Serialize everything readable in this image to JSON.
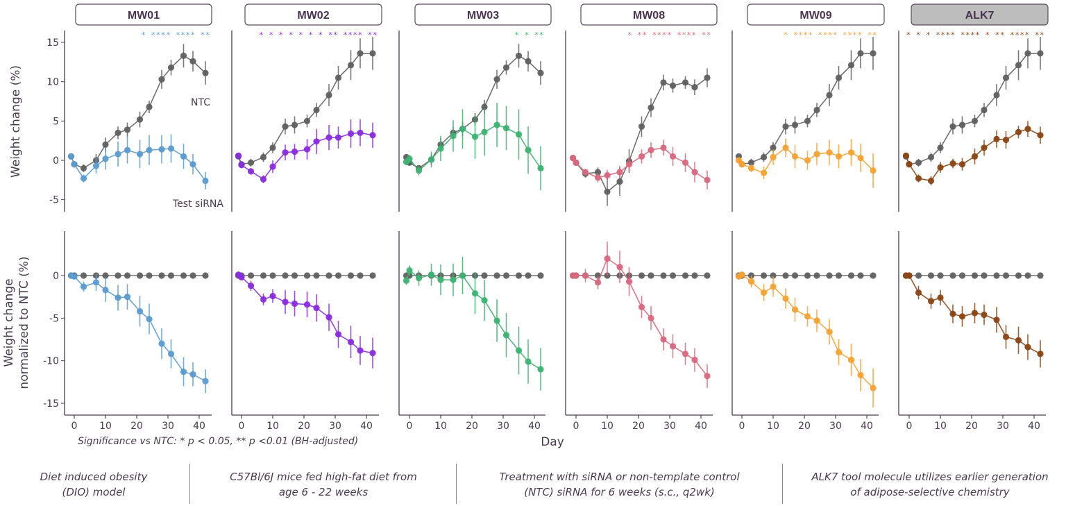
{
  "chart_data": {
    "type": "line",
    "days": [
      -1,
      0,
      3,
      7,
      10,
      14,
      17,
      21,
      24,
      28,
      31,
      35,
      38,
      42
    ],
    "xlabel": "Day",
    "xticks": [
      0,
      10,
      20,
      30,
      40
    ],
    "top": {
      "ylabel": "Weight change (%)",
      "ylim": [
        -6.5,
        16
      ],
      "yticks": [
        -5,
        0,
        5,
        10,
        15
      ]
    },
    "bottom": {
      "ylabel_line1": "Weight change",
      "ylabel_line2": "normalized to NTC (%)",
      "ylim": [
        -16.5,
        5
      ],
      "yticks": [
        -15,
        -10,
        -5,
        0
      ]
    },
    "ntc_color": "#606060",
    "annotations": {
      "ntc": "NTC",
      "test": "Test siRNA"
    },
    "panels": [
      {
        "name": "MW01",
        "color": "#5b9bd0",
        "highlight": false,
        "sig": [
          "*",
          "",
          "****",
          "",
          "****",
          "",
          "**"
        ],
        "sig_days": [
          24,
          28,
          31,
          35,
          38,
          42
        ],
        "sig_text": "*  ****  ****  **",
        "ntc": [
          0.5,
          -0.5,
          -1.0,
          0.0,
          2.0,
          3.5,
          3.9,
          5.2,
          6.8,
          10.3,
          11.8,
          13.3,
          12.6,
          11.1
        ],
        "ntc_err": [
          0.3,
          0.4,
          0.5,
          0.8,
          0.9,
          0.8,
          0.9,
          1.0,
          0.8,
          1.2,
          1.0,
          1.5,
          1.3,
          1.5
        ],
        "test": [
          0.5,
          -0.5,
          -2.3,
          -0.7,
          0.2,
          0.8,
          1.3,
          0.8,
          1.3,
          1.4,
          1.5,
          0.5,
          -0.5,
          -2.6
        ],
        "test_err": [
          0.3,
          0.4,
          0.5,
          1.0,
          1.4,
          1.6,
          1.7,
          1.8,
          1.9,
          1.8,
          1.8,
          1.6,
          1.3,
          1.1
        ],
        "norm": [
          0.0,
          -0.1,
          -1.3,
          -0.8,
          -1.7,
          -2.6,
          -2.5,
          -4.2,
          -5.1,
          -8.0,
          -9.2,
          -11.3,
          -11.6,
          -12.4
        ],
        "norm_err": [
          0.2,
          0.3,
          0.6,
          1.0,
          1.4,
          1.5,
          1.5,
          1.8,
          1.8,
          1.8,
          1.7,
          1.7,
          1.4,
          1.4
        ]
      },
      {
        "name": "MW02",
        "color": "#8a2be2",
        "highlight": false,
        "sig_text": "* *  * *  * *  * ** **** **",
        "ntc": [
          0.5,
          -0.5,
          -0.3,
          0.4,
          1.6,
          4.3,
          4.5,
          5.0,
          6.4,
          8.3,
          10.5,
          12.1,
          13.6,
          13.6
        ],
        "ntc_err": [
          0.3,
          0.4,
          0.5,
          0.6,
          0.7,
          1.0,
          1.1,
          0.8,
          0.9,
          1.4,
          1.5,
          1.9,
          1.9,
          2.1
        ],
        "test": [
          0.6,
          -0.6,
          -1.4,
          -2.4,
          -0.8,
          1.0,
          1.1,
          1.4,
          2.4,
          2.9,
          2.9,
          3.4,
          3.5,
          3.2
        ],
        "test_err": [
          0.3,
          0.4,
          0.4,
          0.5,
          0.8,
          1.0,
          1.0,
          1.3,
          1.6,
          1.6,
          1.4,
          1.8,
          1.7,
          1.6
        ],
        "norm": [
          0.1,
          -0.2,
          -1.2,
          -2.8,
          -2.4,
          -3.1,
          -3.3,
          -3.4,
          -3.8,
          -4.9,
          -6.9,
          -7.8,
          -8.8,
          -9.1
        ],
        "norm_err": [
          0.2,
          0.3,
          0.6,
          0.7,
          0.8,
          1.4,
          1.5,
          1.5,
          1.6,
          1.6,
          1.6,
          1.9,
          1.7,
          1.8
        ]
      },
      {
        "name": "MW03",
        "color": "#3cb371",
        "highlight": false,
        "sig_text": "*  *  **",
        "ntc": [
          0.4,
          -0.3,
          -1.0,
          0.1,
          2.0,
          3.5,
          4.0,
          5.2,
          6.8,
          10.3,
          11.8,
          13.3,
          12.6,
          11.1
        ],
        "ntc_err": [
          0.3,
          0.3,
          0.4,
          0.7,
          0.8,
          0.8,
          0.9,
          0.8,
          0.9,
          1.2,
          0.9,
          1.5,
          1.3,
          1.5
        ],
        "test": [
          -0.2,
          0.2,
          -1.3,
          0.1,
          1.5,
          3.1,
          4.0,
          3.0,
          3.6,
          4.5,
          4.1,
          3.3,
          1.3,
          -1.0
        ],
        "test_err": [
          0.4,
          0.5,
          0.6,
          1.0,
          1.6,
          2.0,
          2.5,
          2.8,
          3.0,
          2.8,
          2.8,
          3.2,
          3.0,
          2.8
        ],
        "norm": [
          -0.6,
          0.6,
          -0.3,
          0.1,
          -0.5,
          -0.5,
          0.0,
          -2.1,
          -2.9,
          -5.3,
          -7.0,
          -8.8,
          -10.1,
          -11.0
        ],
        "norm_err": [
          0.5,
          0.6,
          0.9,
          1.3,
          1.8,
          1.9,
          2.2,
          2.4,
          2.4,
          2.5,
          2.6,
          2.8,
          2.6,
          2.5
        ]
      },
      {
        "name": "MW08",
        "color": "#d9687e",
        "highlight": false,
        "sig_text": "* **  ****  ****  **",
        "ntc": [
          0.3,
          -0.3,
          -1.7,
          -1.5,
          -4.0,
          -2.7,
          -0.1,
          4.3,
          6.7,
          9.9,
          9.5,
          9.9,
          9.3,
          10.5
        ],
        "ntc_err": [
          0.3,
          0.3,
          0.5,
          0.6,
          1.8,
          1.8,
          1.5,
          1.3,
          1.2,
          1.0,
          0.9,
          0.8,
          1.0,
          1.2
        ],
        "test": [
          0.3,
          -0.3,
          -1.5,
          -2.2,
          -1.9,
          -1.5,
          -0.5,
          0.5,
          1.3,
          1.6,
          0.5,
          -0.3,
          -1.5,
          -2.5
        ],
        "test_err": [
          0.3,
          0.3,
          0.4,
          0.6,
          0.7,
          0.8,
          0.9,
          0.9,
          1.0,
          1.0,
          1.2,
          1.2,
          1.3,
          1.2
        ],
        "norm": [
          0.0,
          0.0,
          0.0,
          -0.8,
          2.0,
          1.0,
          -0.7,
          -3.7,
          -5.0,
          -7.5,
          -8.3,
          -9.2,
          -9.9,
          -11.8
        ],
        "norm_err": [
          0.2,
          0.2,
          0.8,
          0.8,
          2.0,
          1.9,
          1.7,
          1.3,
          1.4,
          1.3,
          1.4,
          1.3,
          1.4,
          1.4
        ]
      },
      {
        "name": "MW09",
        "color": "#f5a233",
        "highlight": false,
        "sig_text": "*  ****  ****  ****  **",
        "ntc": [
          0.5,
          -0.5,
          -0.3,
          0.4,
          1.6,
          4.3,
          4.5,
          5.0,
          6.4,
          8.3,
          10.5,
          12.1,
          13.6,
          13.6
        ],
        "ntc_err": [
          0.3,
          0.4,
          0.5,
          0.6,
          0.7,
          1.0,
          1.1,
          0.8,
          0.9,
          1.4,
          1.5,
          1.9,
          1.9,
          2.1
        ],
        "test": [
          0.0,
          -0.5,
          -1.0,
          -1.6,
          0.4,
          1.6,
          0.5,
          0.0,
          0.8,
          1.0,
          0.5,
          1.0,
          0.3,
          -1.3
        ],
        "test_err": [
          0.3,
          0.4,
          0.5,
          0.8,
          1.0,
          1.2,
          1.5,
          1.2,
          1.4,
          1.6,
          1.5,
          1.7,
          1.8,
          2.2
        ],
        "norm": [
          -0.1,
          0.1,
          -0.7,
          -2.0,
          -1.3,
          -2.7,
          -4.0,
          -4.8,
          -5.3,
          -6.6,
          -9.0,
          -9.9,
          -11.7,
          -13.2
        ],
        "norm_err": [
          0.2,
          0.3,
          0.7,
          1.0,
          1.2,
          1.2,
          1.4,
          1.2,
          1.3,
          1.5,
          1.5,
          1.9,
          1.9,
          2.3
        ]
      },
      {
        "name": "ALK7",
        "color": "#8b4513",
        "highlight": true,
        "sig_text": "*  *  *  ****  ****  * **  ****  **",
        "ntc": [
          0.5,
          -0.5,
          -0.3,
          0.4,
          1.6,
          4.3,
          4.5,
          5.0,
          6.4,
          8.3,
          10.5,
          12.1,
          13.6,
          13.6
        ],
        "ntc_err": [
          0.3,
          0.4,
          0.5,
          0.6,
          0.7,
          1.0,
          1.1,
          0.8,
          0.9,
          1.4,
          1.5,
          1.9,
          1.9,
          2.1
        ],
        "test": [
          0.6,
          -0.5,
          -2.3,
          -2.6,
          -0.9,
          -0.4,
          -0.5,
          0.5,
          1.6,
          2.7,
          2.6,
          3.6,
          4.0,
          3.2
        ],
        "test_err": [
          0.3,
          0.4,
          0.5,
          0.6,
          0.7,
          0.6,
          0.8,
          1.0,
          1.0,
          1.1,
          1.1,
          0.8,
          1.0,
          1.1
        ],
        "norm": [
          0.0,
          0.0,
          -2.0,
          -3.0,
          -2.6,
          -4.5,
          -4.8,
          -4.4,
          -4.6,
          -5.2,
          -7.2,
          -7.6,
          -8.4,
          -9.2
        ],
        "norm_err": [
          0.2,
          0.2,
          0.8,
          0.9,
          0.9,
          1.1,
          1.2,
          1.2,
          1.2,
          1.5,
          1.4,
          1.6,
          1.5,
          1.6
        ]
      }
    ]
  },
  "significance_note": "Significance vs NTC: * p < 0.05, ** p <0.01 (BH-adjusted)",
  "captions": [
    {
      "line1": "Diet induced obesity",
      "line2": "(DIO) model"
    },
    {
      "line1": "C57Bl/6J mice fed high-fat diet from",
      "line2": "age 6 - 22 weeks"
    },
    {
      "line1": "Treatment with siRNA or non-template control",
      "line2": "(NTC) siRNA for 6 weeks (s.c., q2wk)"
    },
    {
      "line1": "ALK7 tool molecule utilizes earlier generation",
      "line2": "of adipose-selective chemistry"
    }
  ]
}
